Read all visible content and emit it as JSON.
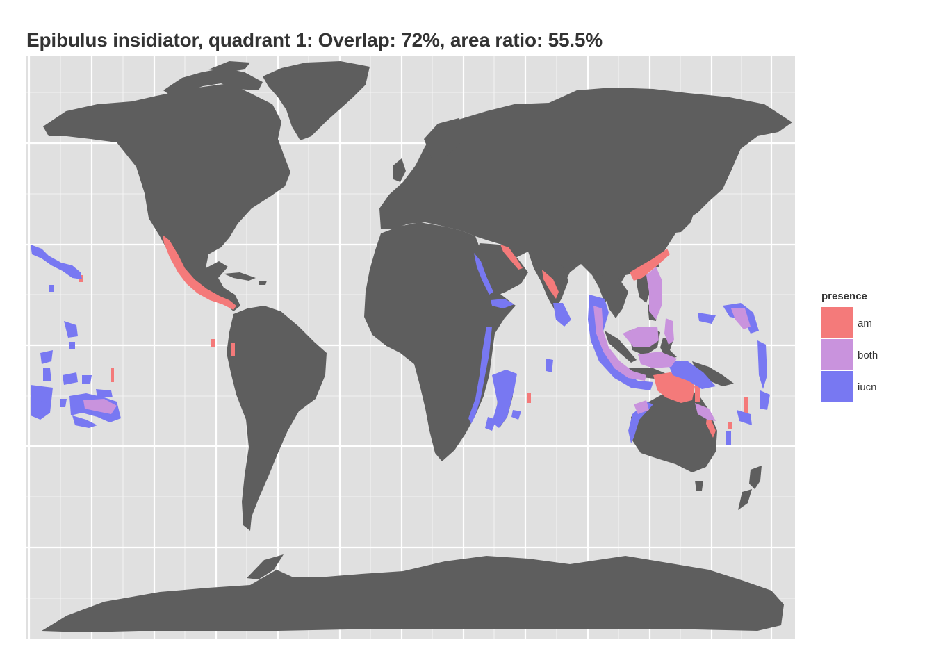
{
  "title": "Epibulus insidiator, quadrant 1: Overlap: 72%, area ratio: 55.5%",
  "map": {
    "projection": "equirectangular world map, Pacific-split at 180°",
    "panel_background": "#e0e0e0",
    "gridline_color": "#ffffff",
    "land_color": "#5e5e5e",
    "layer": "species presence raster over coastal and island cells"
  },
  "legend": {
    "title": "presence",
    "items": [
      {
        "label": "am",
        "color": "#f47a7a"
      },
      {
        "label": "both",
        "color": "#c993dd"
      },
      {
        "label": "iucn",
        "color": "#7878f2"
      }
    ]
  }
}
